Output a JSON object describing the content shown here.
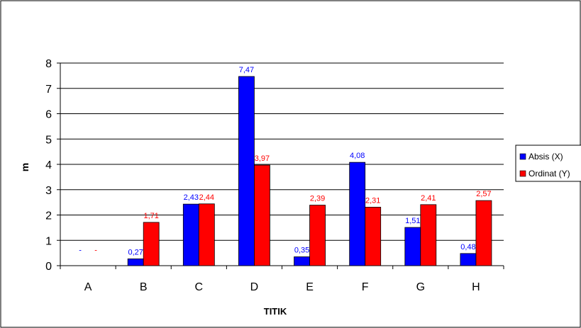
{
  "chart_data": {
    "type": "bar",
    "title": "",
    "xlabel": "TITIK",
    "ylabel": "m",
    "ylim": [
      0,
      8
    ],
    "yticks": [
      "0",
      "1",
      "2",
      "3",
      "4",
      "5",
      "6",
      "7",
      "8"
    ],
    "grid": true,
    "legend_position": "right",
    "categories": [
      "A",
      "B",
      "C",
      "D",
      "E",
      "F",
      "G",
      "H"
    ],
    "series": [
      {
        "name": "Absis (X)",
        "color": "#0000ff",
        "label_color": "#0000ff",
        "values": [
          0,
          0.27,
          2.43,
          7.47,
          0.35,
          4.08,
          1.51,
          0.48
        ],
        "labels": [
          "-",
          "0,27",
          "2,43",
          "7,47",
          "0,35",
          "4,08",
          "1,51",
          "0,48"
        ]
      },
      {
        "name": "Ordinat (Y)",
        "color": "#ff0000",
        "label_color": "#ff0000",
        "values": [
          0,
          1.71,
          2.44,
          3.97,
          2.39,
          2.31,
          2.41,
          2.57
        ],
        "labels": [
          "-",
          "1,71",
          "2,44",
          "3,97",
          "2,39",
          "2,31",
          "2,41",
          "2,57"
        ]
      }
    ]
  }
}
